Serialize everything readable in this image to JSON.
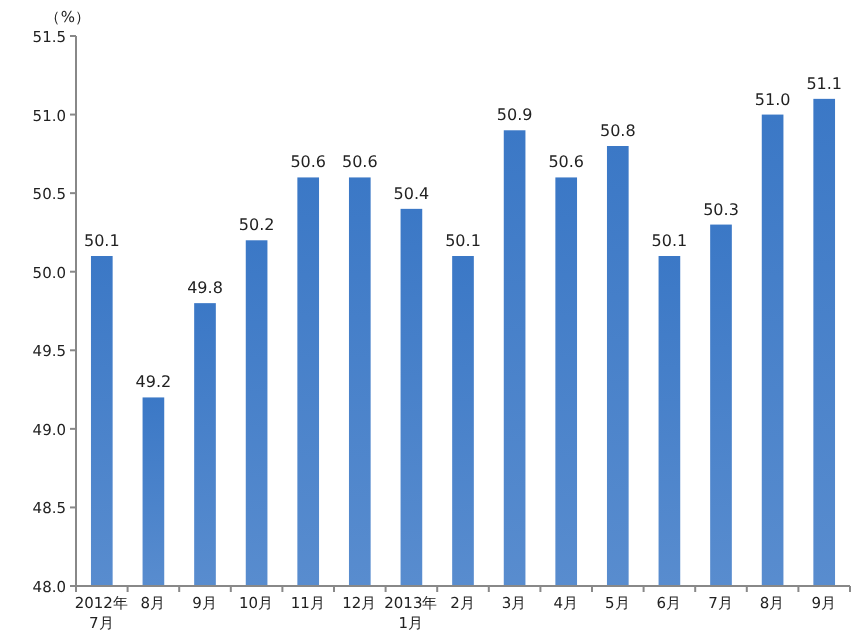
{
  "chart_data": {
    "type": "bar",
    "ylabel": "（%）",
    "categories": [
      "2012年\n7月",
      "8月",
      "9月",
      "10月",
      "11月",
      "12月",
      "2013年\n1月",
      "2月",
      "3月",
      "4月",
      "5月",
      "6月",
      "7月",
      "8月",
      "9月"
    ],
    "values": [
      50.1,
      49.2,
      49.8,
      50.2,
      50.6,
      50.6,
      50.4,
      50.1,
      50.9,
      50.6,
      50.8,
      50.1,
      50.3,
      51.0,
      51.1
    ],
    "value_labels": [
      "50.1",
      "49.2",
      "49.8",
      "50.2",
      "50.6",
      "50.6",
      "50.4",
      "50.1",
      "50.9",
      "50.6",
      "50.8",
      "50.1",
      "50.3",
      "51.0",
      "51.1"
    ],
    "color": "#3b78c6",
    "ylim": [
      48,
      51.5
    ],
    "yticks": [
      {
        "value": 48,
        "label": "48.0"
      },
      {
        "value": 48.5,
        "label": "48.5"
      },
      {
        "value": 49,
        "label": "49.0"
      },
      {
        "value": 49.5,
        "label": "49.5"
      },
      {
        "value": 50,
        "label": "50.0"
      },
      {
        "value": 50.5,
        "label": "50.5"
      },
      {
        "value": 51,
        "label": "51.0"
      },
      {
        "value": 51.5,
        "label": "51.5"
      }
    ],
    "grid": false
  }
}
